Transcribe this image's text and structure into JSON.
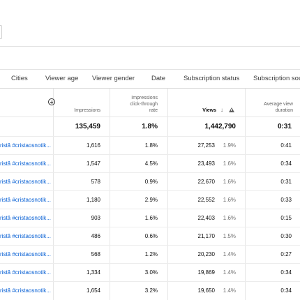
{
  "tabs": [
    "Cities",
    "Viewer age",
    "Viewer gender",
    "Date",
    "Subscription status",
    "Subscription sou"
  ],
  "headers": {
    "impressions": "Impressions",
    "ctr_line1": "Impressions",
    "ctr_line2": "click-through",
    "ctr_line3": "rate",
    "views": "Views",
    "avd_line1": "Average view",
    "avd_line2": "duration"
  },
  "totals": {
    "impressions": "135,459",
    "ctr": "1.8%",
    "views": "1,442,790",
    "avd": "0:31"
  },
  "rows": [
    {
      "title": "ristă #cristaosnotik...",
      "impressions": "1,616",
      "ctr": "1.8%",
      "views": "27,253",
      "views_pct": "1.9%",
      "avd": "0:41"
    },
    {
      "title": "ristă #cristaosnotik...",
      "impressions": "1,547",
      "ctr": "4.5%",
      "views": "23,493",
      "views_pct": "1.6%",
      "avd": "0:34"
    },
    {
      "title": "ristă #cristaosnotik...",
      "impressions": "578",
      "ctr": "0.9%",
      "views": "22,670",
      "views_pct": "1.6%",
      "avd": "0:31"
    },
    {
      "title": "ristă #cristaosnotik...",
      "impressions": "1,180",
      "ctr": "2.9%",
      "views": "22,552",
      "views_pct": "1.6%",
      "avd": "0:33"
    },
    {
      "title": "ristă #cristaosnotik...",
      "impressions": "903",
      "ctr": "1.6%",
      "views": "22,403",
      "views_pct": "1.6%",
      "avd": "0:15"
    },
    {
      "title": "ristă #cristaosnotik...",
      "impressions": "486",
      "ctr": "0.6%",
      "views": "21,170",
      "views_pct": "1.5%",
      "avd": "0:30"
    },
    {
      "title": "ristă #cristaosnotik...",
      "impressions": "568",
      "ctr": "1.2%",
      "views": "20,230",
      "views_pct": "1.4%",
      "avd": "0:27"
    },
    {
      "title": "ristă #cristaosnotik...",
      "impressions": "1,334",
      "ctr": "3.0%",
      "views": "19,869",
      "views_pct": "1.4%",
      "avd": "0:34"
    },
    {
      "title": "ristă #cristaosnotik...",
      "impressions": "1,654",
      "ctr": "3.2%",
      "views": "19,650",
      "views_pct": "1.4%",
      "avd": "0:34"
    }
  ]
}
